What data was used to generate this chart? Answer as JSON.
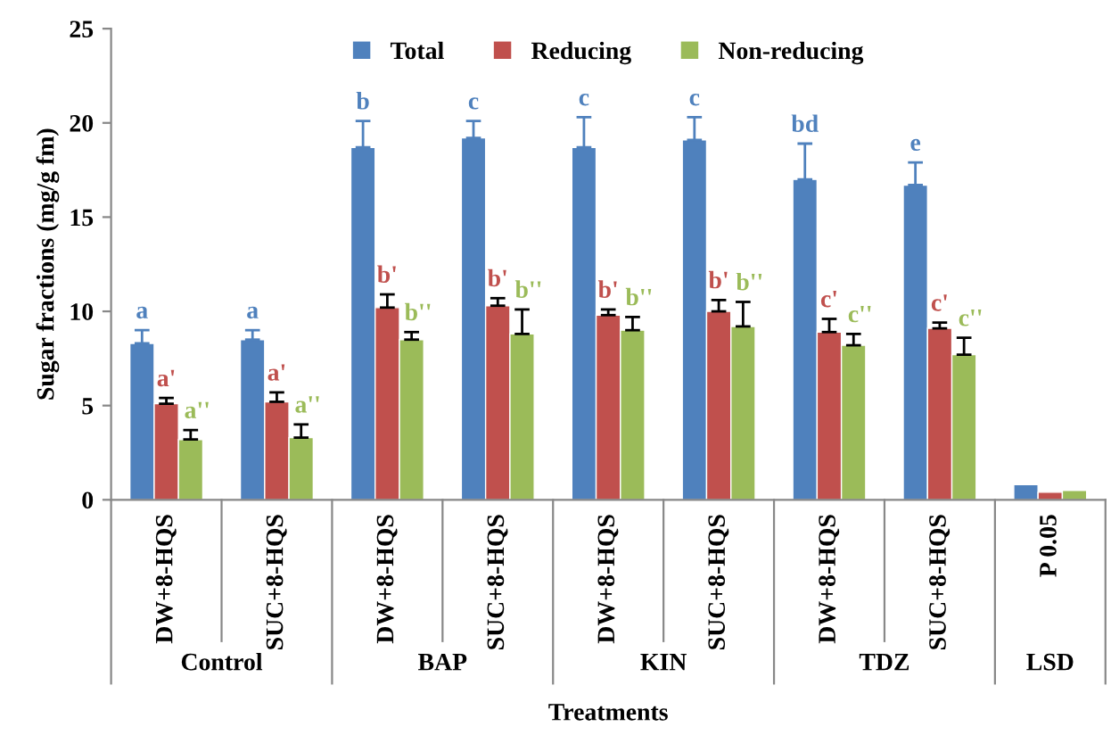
{
  "chart_data": {
    "type": "bar",
    "xlabel": "Treatments",
    "ylabel": "Sugar fractions (mg/g fm)",
    "categories": [
      "DW+8-HQS",
      "SUC+8-HQS",
      "DW+8-HQS",
      "SUC+8-HQS",
      "DW+8-HQS",
      "SUC+8-HQS",
      "DW+8-HQS",
      "SUC+8-HQS",
      "P 0.05"
    ],
    "series": [
      {
        "name": "Total",
        "color": "#4f81bd",
        "values": [
          8.3,
          8.5,
          18.7,
          19.2,
          18.7,
          19.1,
          17.0,
          16.7,
          0.8
        ],
        "errors": [
          [
            8.3,
            9.0
          ],
          [
            8.5,
            9.0
          ],
          [
            18.7,
            20.1
          ],
          [
            19.2,
            20.1
          ],
          [
            18.7,
            20.3
          ],
          [
            19.1,
            20.3
          ],
          [
            17.0,
            18.9
          ],
          [
            16.7,
            17.9
          ],
          null
        ],
        "value_labels": [
          "a",
          "a",
          "b",
          "c",
          "c",
          "c",
          "bd",
          "e",
          null
        ]
      },
      {
        "name": "Reducing",
        "color": "#c0504d",
        "values": [
          5.1,
          5.2,
          10.2,
          10.3,
          9.8,
          10.0,
          8.9,
          9.1,
          0.4
        ],
        "errors": [
          [
            5.1,
            5.4
          ],
          [
            5.2,
            5.7
          ],
          [
            10.2,
            10.9
          ],
          [
            10.3,
            10.7
          ],
          [
            9.8,
            10.1
          ],
          [
            10.0,
            10.6
          ],
          [
            8.9,
            9.6
          ],
          [
            9.1,
            9.4
          ],
          null
        ],
        "value_labels": [
          "a'",
          "a'",
          "b'",
          "b'",
          "b'",
          "b'",
          "c'",
          "c'",
          null
        ]
      },
      {
        "name": "Non-reducing",
        "color": "#9bbb59",
        "values": [
          3.2,
          3.3,
          8.5,
          8.8,
          9.0,
          9.2,
          8.2,
          7.7,
          0.5
        ],
        "errors": [
          [
            3.2,
            3.7
          ],
          [
            3.3,
            4.0
          ],
          [
            8.5,
            8.9
          ],
          [
            8.8,
            10.1
          ],
          [
            9.0,
            9.7
          ],
          [
            9.2,
            10.5
          ],
          [
            8.2,
            8.8
          ],
          [
            7.7,
            8.6
          ],
          null
        ],
        "value_labels": [
          "a''",
          "a''",
          "b''",
          "b''",
          "b''",
          "b''",
          "c''",
          "c''",
          null
        ]
      }
    ],
    "annotations": [
      "Control",
      "BAP",
      "KIN",
      "TDZ",
      "LSD"
    ],
    "ylim": [
      0,
      25
    ],
    "yticks": [
      0,
      5,
      10,
      15,
      20,
      25
    ],
    "grid": false,
    "legend": "top"
  }
}
